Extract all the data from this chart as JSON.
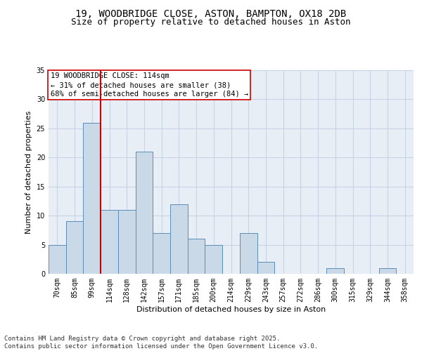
{
  "title_line1": "19, WOODBRIDGE CLOSE, ASTON, BAMPTON, OX18 2DB",
  "title_line2": "Size of property relative to detached houses in Aston",
  "xlabel": "Distribution of detached houses by size in Aston",
  "ylabel": "Number of detached properties",
  "categories": [
    "70sqm",
    "85sqm",
    "99sqm",
    "114sqm",
    "128sqm",
    "142sqm",
    "157sqm",
    "171sqm",
    "185sqm",
    "200sqm",
    "214sqm",
    "229sqm",
    "243sqm",
    "257sqm",
    "272sqm",
    "286sqm",
    "300sqm",
    "315sqm",
    "329sqm",
    "344sqm",
    "358sqm"
  ],
  "values": [
    5,
    9,
    26,
    11,
    11,
    21,
    7,
    12,
    6,
    5,
    0,
    7,
    2,
    0,
    0,
    0,
    1,
    0,
    0,
    1,
    0
  ],
  "bar_color": "#c9d9e8",
  "bar_edge_color": "#5b8db8",
  "grid_color": "#c8d4e4",
  "background_color": "#e8eef6",
  "vline_color": "#cc0000",
  "annotation_box_text": "19 WOODBRIDGE CLOSE: 114sqm\n← 31% of detached houses are smaller (38)\n68% of semi-detached houses are larger (84) →",
  "annotation_box_color": "#cc0000",
  "ylim": [
    0,
    35
  ],
  "yticks": [
    0,
    5,
    10,
    15,
    20,
    25,
    30,
    35
  ],
  "footer_text": "Contains HM Land Registry data © Crown copyright and database right 2025.\nContains public sector information licensed under the Open Government Licence v3.0.",
  "title_fontsize": 10,
  "subtitle_fontsize": 9,
  "axis_label_fontsize": 8,
  "tick_fontsize": 7,
  "annotation_fontsize": 7.5,
  "footer_fontsize": 6.5
}
